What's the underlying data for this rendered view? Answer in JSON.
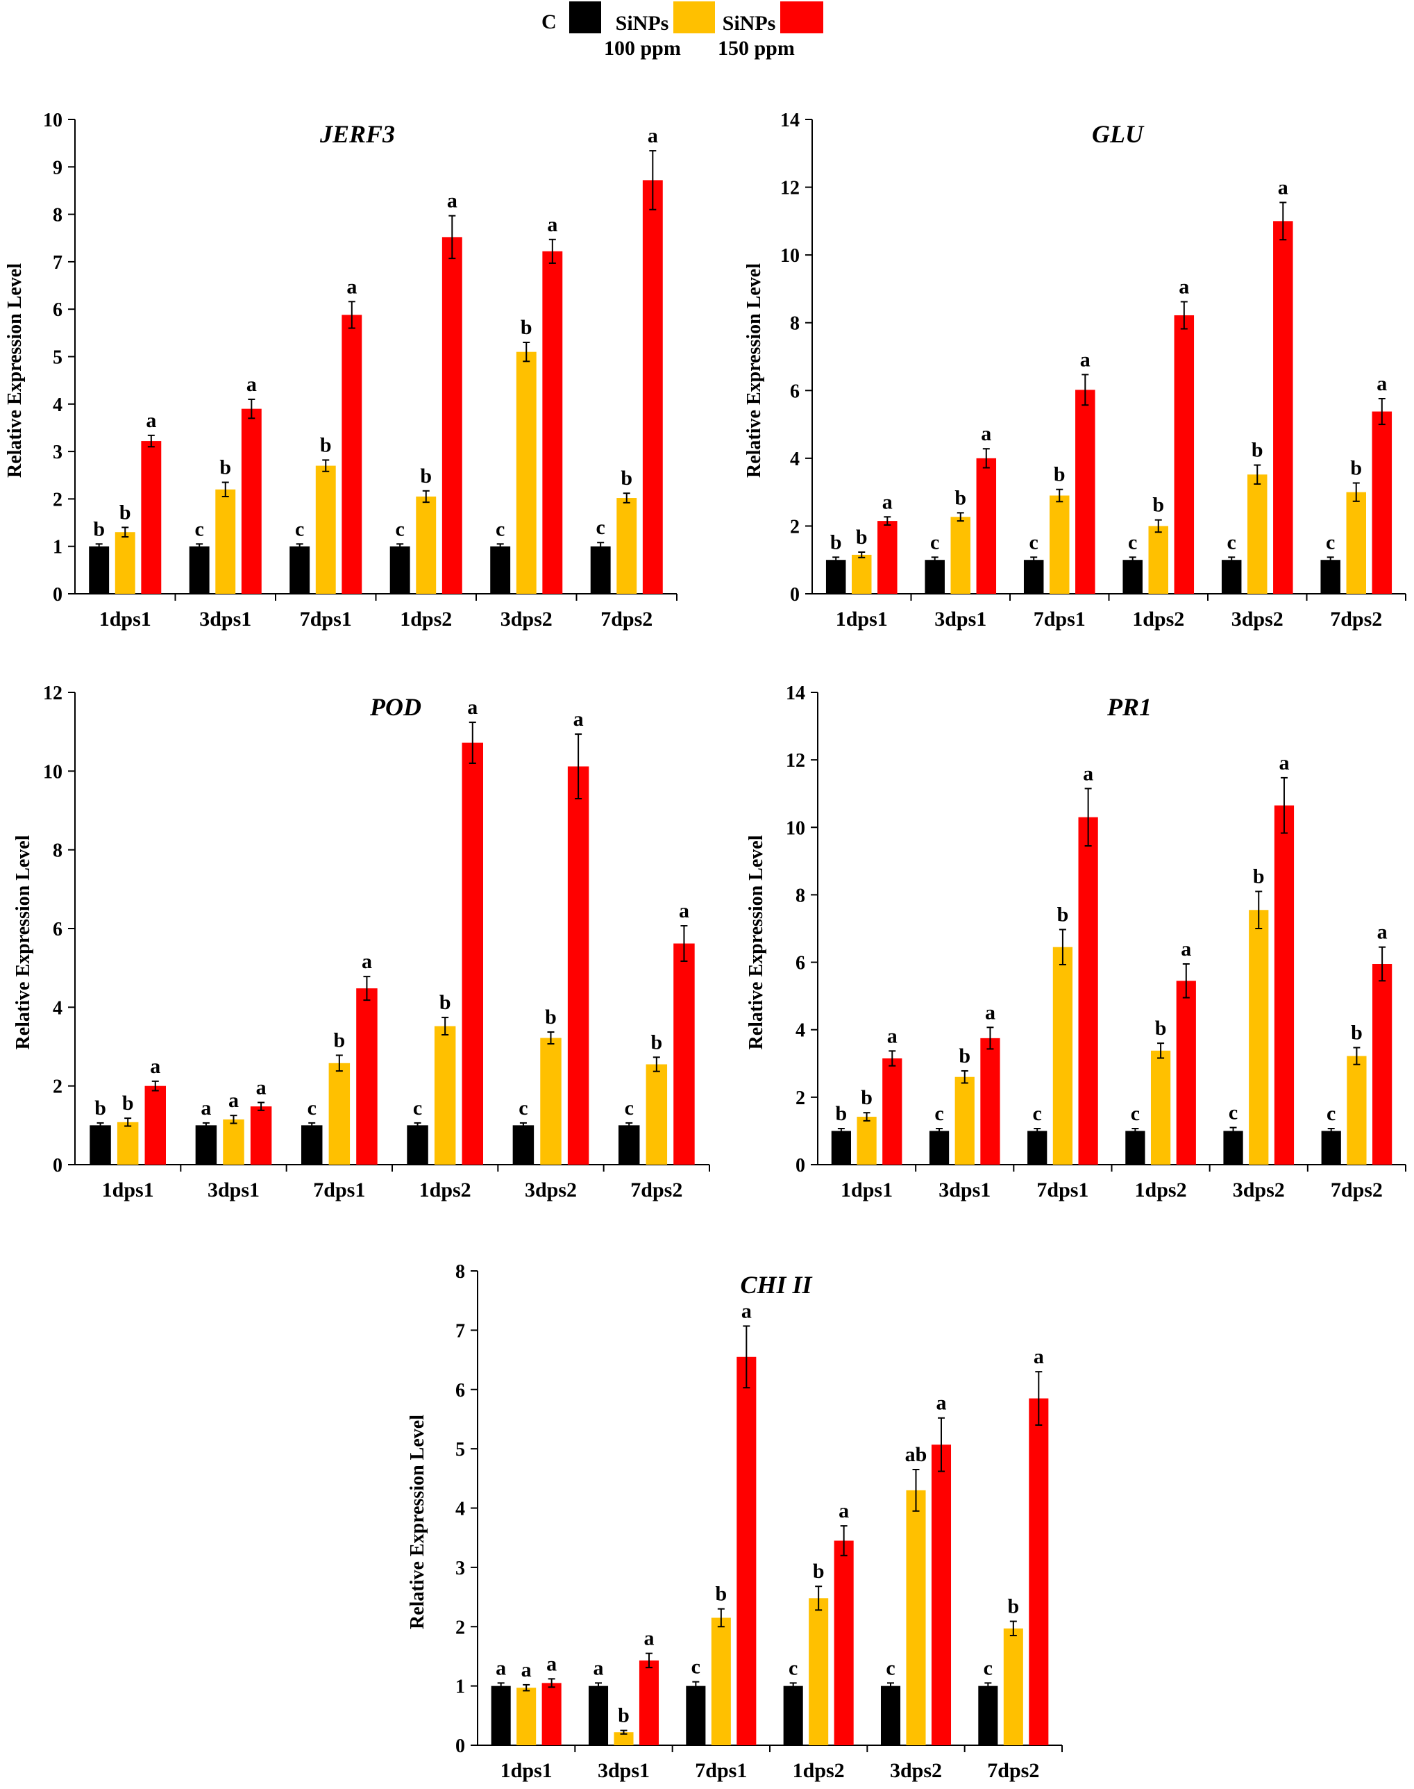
{
  "legend": {
    "items": [
      {
        "line1": "C",
        "line2": "",
        "color": "#000000"
      },
      {
        "line1": "SiNPs",
        "line2": "100 ppm",
        "color": "#FFC000"
      },
      {
        "line1": "SiNPs",
        "line2": "150 ppm",
        "color": "#FF0000"
      }
    ]
  },
  "chart_data": [
    {
      "type": "bar",
      "title": "JERF3",
      "ylabel": "Relative Expression  Level",
      "ylim": [
        0,
        10
      ],
      "yticks": [
        0,
        1,
        2,
        3,
        4,
        5,
        6,
        7,
        8,
        9,
        10
      ],
      "categories": [
        "1dps1",
        "3dps1",
        "7dps1",
        "1dps2",
        "3dps2",
        "7dps2"
      ],
      "series": [
        {
          "name": "C",
          "color": "#000000",
          "values": [
            1.0,
            1.0,
            1.0,
            1.0,
            1.0,
            1.0
          ],
          "errors": [
            0.05,
            0.05,
            0.05,
            0.05,
            0.05,
            0.08
          ],
          "letters": [
            "b",
            "c",
            "c",
            "c",
            "c",
            "c"
          ]
        },
        {
          "name": "SiNPs 100 ppm",
          "color": "#FFC000",
          "values": [
            1.3,
            2.2,
            2.7,
            2.05,
            5.1,
            2.02
          ],
          "errors": [
            0.1,
            0.15,
            0.12,
            0.12,
            0.2,
            0.1
          ],
          "letters": [
            "b",
            "b",
            "b",
            "b",
            "b",
            "b"
          ]
        },
        {
          "name": "SiNPs 150 ppm",
          "color": "#FF0000",
          "values": [
            3.22,
            3.9,
            5.88,
            7.52,
            7.22,
            8.72
          ],
          "errors": [
            0.12,
            0.2,
            0.28,
            0.45,
            0.25,
            0.62
          ],
          "letters": [
            "a",
            "a",
            "a",
            "a",
            "a",
            "a"
          ]
        }
      ]
    },
    {
      "type": "bar",
      "title": "GLU",
      "ylabel": "Relative Expression  Level",
      "ylim": [
        0,
        14
      ],
      "yticks": [
        0,
        2,
        4,
        6,
        8,
        10,
        12,
        14
      ],
      "categories": [
        "1dps1",
        "3dps1",
        "7dps1",
        "1dps2",
        "3dps2",
        "7dps2"
      ],
      "series": [
        {
          "name": "C",
          "color": "#000000",
          "values": [
            1.0,
            1.0,
            1.0,
            1.0,
            1.0,
            1.0
          ],
          "errors": [
            0.08,
            0.08,
            0.08,
            0.08,
            0.08,
            0.08
          ],
          "letters": [
            "b",
            "c",
            "c",
            "c",
            "c",
            "c"
          ]
        },
        {
          "name": "SiNPs 100 ppm",
          "color": "#FFC000",
          "values": [
            1.15,
            2.27,
            2.9,
            2.0,
            3.52,
            3.0
          ],
          "errors": [
            0.08,
            0.12,
            0.18,
            0.18,
            0.28,
            0.27
          ],
          "letters": [
            "b",
            "b",
            "b",
            "b",
            "b",
            "b"
          ]
        },
        {
          "name": "SiNPs 150 ppm",
          "color": "#FF0000",
          "values": [
            2.15,
            4.0,
            6.02,
            8.22,
            11.0,
            5.38
          ],
          "errors": [
            0.12,
            0.28,
            0.45,
            0.4,
            0.55,
            0.38
          ],
          "letters": [
            "a",
            "a",
            "a",
            "a",
            "a",
            "a"
          ]
        }
      ]
    },
    {
      "type": "bar",
      "title": "POD",
      "ylabel": "Relative Expression  Level",
      "ylim": [
        0,
        12
      ],
      "yticks": [
        0,
        2,
        4,
        6,
        8,
        10,
        12
      ],
      "categories": [
        "1dps1",
        "3dps1",
        "7dps1",
        "1dps2",
        "3dps2",
        "7dps2"
      ],
      "series": [
        {
          "name": "C",
          "color": "#000000",
          "values": [
            1.0,
            1.0,
            1.0,
            1.0,
            1.0,
            1.0
          ],
          "errors": [
            0.06,
            0.06,
            0.06,
            0.06,
            0.06,
            0.06
          ],
          "letters": [
            "b",
            "a",
            "c",
            "c",
            "c",
            "c"
          ]
        },
        {
          "name": "SiNPs 100 ppm",
          "color": "#FFC000",
          "values": [
            1.08,
            1.15,
            2.58,
            3.52,
            3.22,
            2.55
          ],
          "errors": [
            0.1,
            0.1,
            0.2,
            0.22,
            0.15,
            0.18
          ],
          "letters": [
            "b",
            "a",
            "b",
            "b",
            "b",
            "b"
          ]
        },
        {
          "name": "SiNPs 150 ppm",
          "color": "#FF0000",
          "values": [
            2.0,
            1.48,
            4.48,
            10.72,
            10.12,
            5.62
          ],
          "errors": [
            0.12,
            0.1,
            0.3,
            0.52,
            0.82,
            0.45
          ],
          "letters": [
            "a",
            "a",
            "a",
            "a",
            "a",
            "a"
          ]
        }
      ]
    },
    {
      "type": "bar",
      "title": "PR1",
      "ylabel": "Relative Expression  Level",
      "ylim": [
        0,
        14
      ],
      "yticks": [
        0,
        2,
        4,
        6,
        8,
        10,
        12,
        14
      ],
      "categories": [
        "1dps1",
        "3dps1",
        "7dps1",
        "1dps2",
        "3dps2",
        "7dps2"
      ],
      "series": [
        {
          "name": "C",
          "color": "#000000",
          "values": [
            1.0,
            1.0,
            1.0,
            1.0,
            1.0,
            1.0
          ],
          "errors": [
            0.07,
            0.07,
            0.07,
            0.07,
            0.1,
            0.07
          ],
          "letters": [
            "b",
            "c",
            "c",
            "c",
            "c",
            "c"
          ]
        },
        {
          "name": "SiNPs 100 ppm",
          "color": "#FFC000",
          "values": [
            1.42,
            2.6,
            6.45,
            3.38,
            7.55,
            3.22
          ],
          "errors": [
            0.12,
            0.18,
            0.52,
            0.22,
            0.55,
            0.25
          ],
          "letters": [
            "b",
            "b",
            "b",
            "b",
            "b",
            "b"
          ]
        },
        {
          "name": "SiNPs 150 ppm",
          "color": "#FF0000",
          "values": [
            3.15,
            3.75,
            10.3,
            5.45,
            10.65,
            5.95
          ],
          "errors": [
            0.22,
            0.32,
            0.85,
            0.5,
            0.82,
            0.5
          ],
          "letters": [
            "a",
            "a",
            "a",
            "a",
            "a",
            "a"
          ]
        }
      ]
    },
    {
      "type": "bar",
      "title": "CHI II",
      "ylabel": "Relative Expression  Level",
      "ylim": [
        0,
        8
      ],
      "yticks": [
        0,
        1,
        2,
        3,
        4,
        5,
        6,
        7,
        8
      ],
      "categories": [
        "1dps1",
        "3dps1",
        "7dps1",
        "1dps2",
        "3dps2",
        "7dps2"
      ],
      "series": [
        {
          "name": "C",
          "color": "#000000",
          "values": [
            1.0,
            1.0,
            1.0,
            1.0,
            1.0,
            1.0
          ],
          "errors": [
            0.05,
            0.05,
            0.07,
            0.05,
            0.05,
            0.05
          ],
          "letters": [
            "a",
            "a",
            "c",
            "c",
            "c",
            "c"
          ]
        },
        {
          "name": "SiNPs 100 ppm",
          "color": "#FFC000",
          "values": [
            0.97,
            0.22,
            2.15,
            2.48,
            4.3,
            1.97
          ],
          "errors": [
            0.05,
            0.03,
            0.15,
            0.2,
            0.35,
            0.12
          ],
          "letters": [
            "a",
            "b",
            "b",
            "b",
            "ab",
            "b"
          ]
        },
        {
          "name": "SiNPs 150 ppm",
          "color": "#FF0000",
          "values": [
            1.05,
            1.43,
            6.55,
            3.45,
            5.07,
            5.85
          ],
          "errors": [
            0.07,
            0.12,
            0.52,
            0.25,
            0.45,
            0.45
          ],
          "letters": [
            "a",
            "a",
            "a",
            "a",
            "a",
            "a"
          ]
        }
      ]
    }
  ]
}
